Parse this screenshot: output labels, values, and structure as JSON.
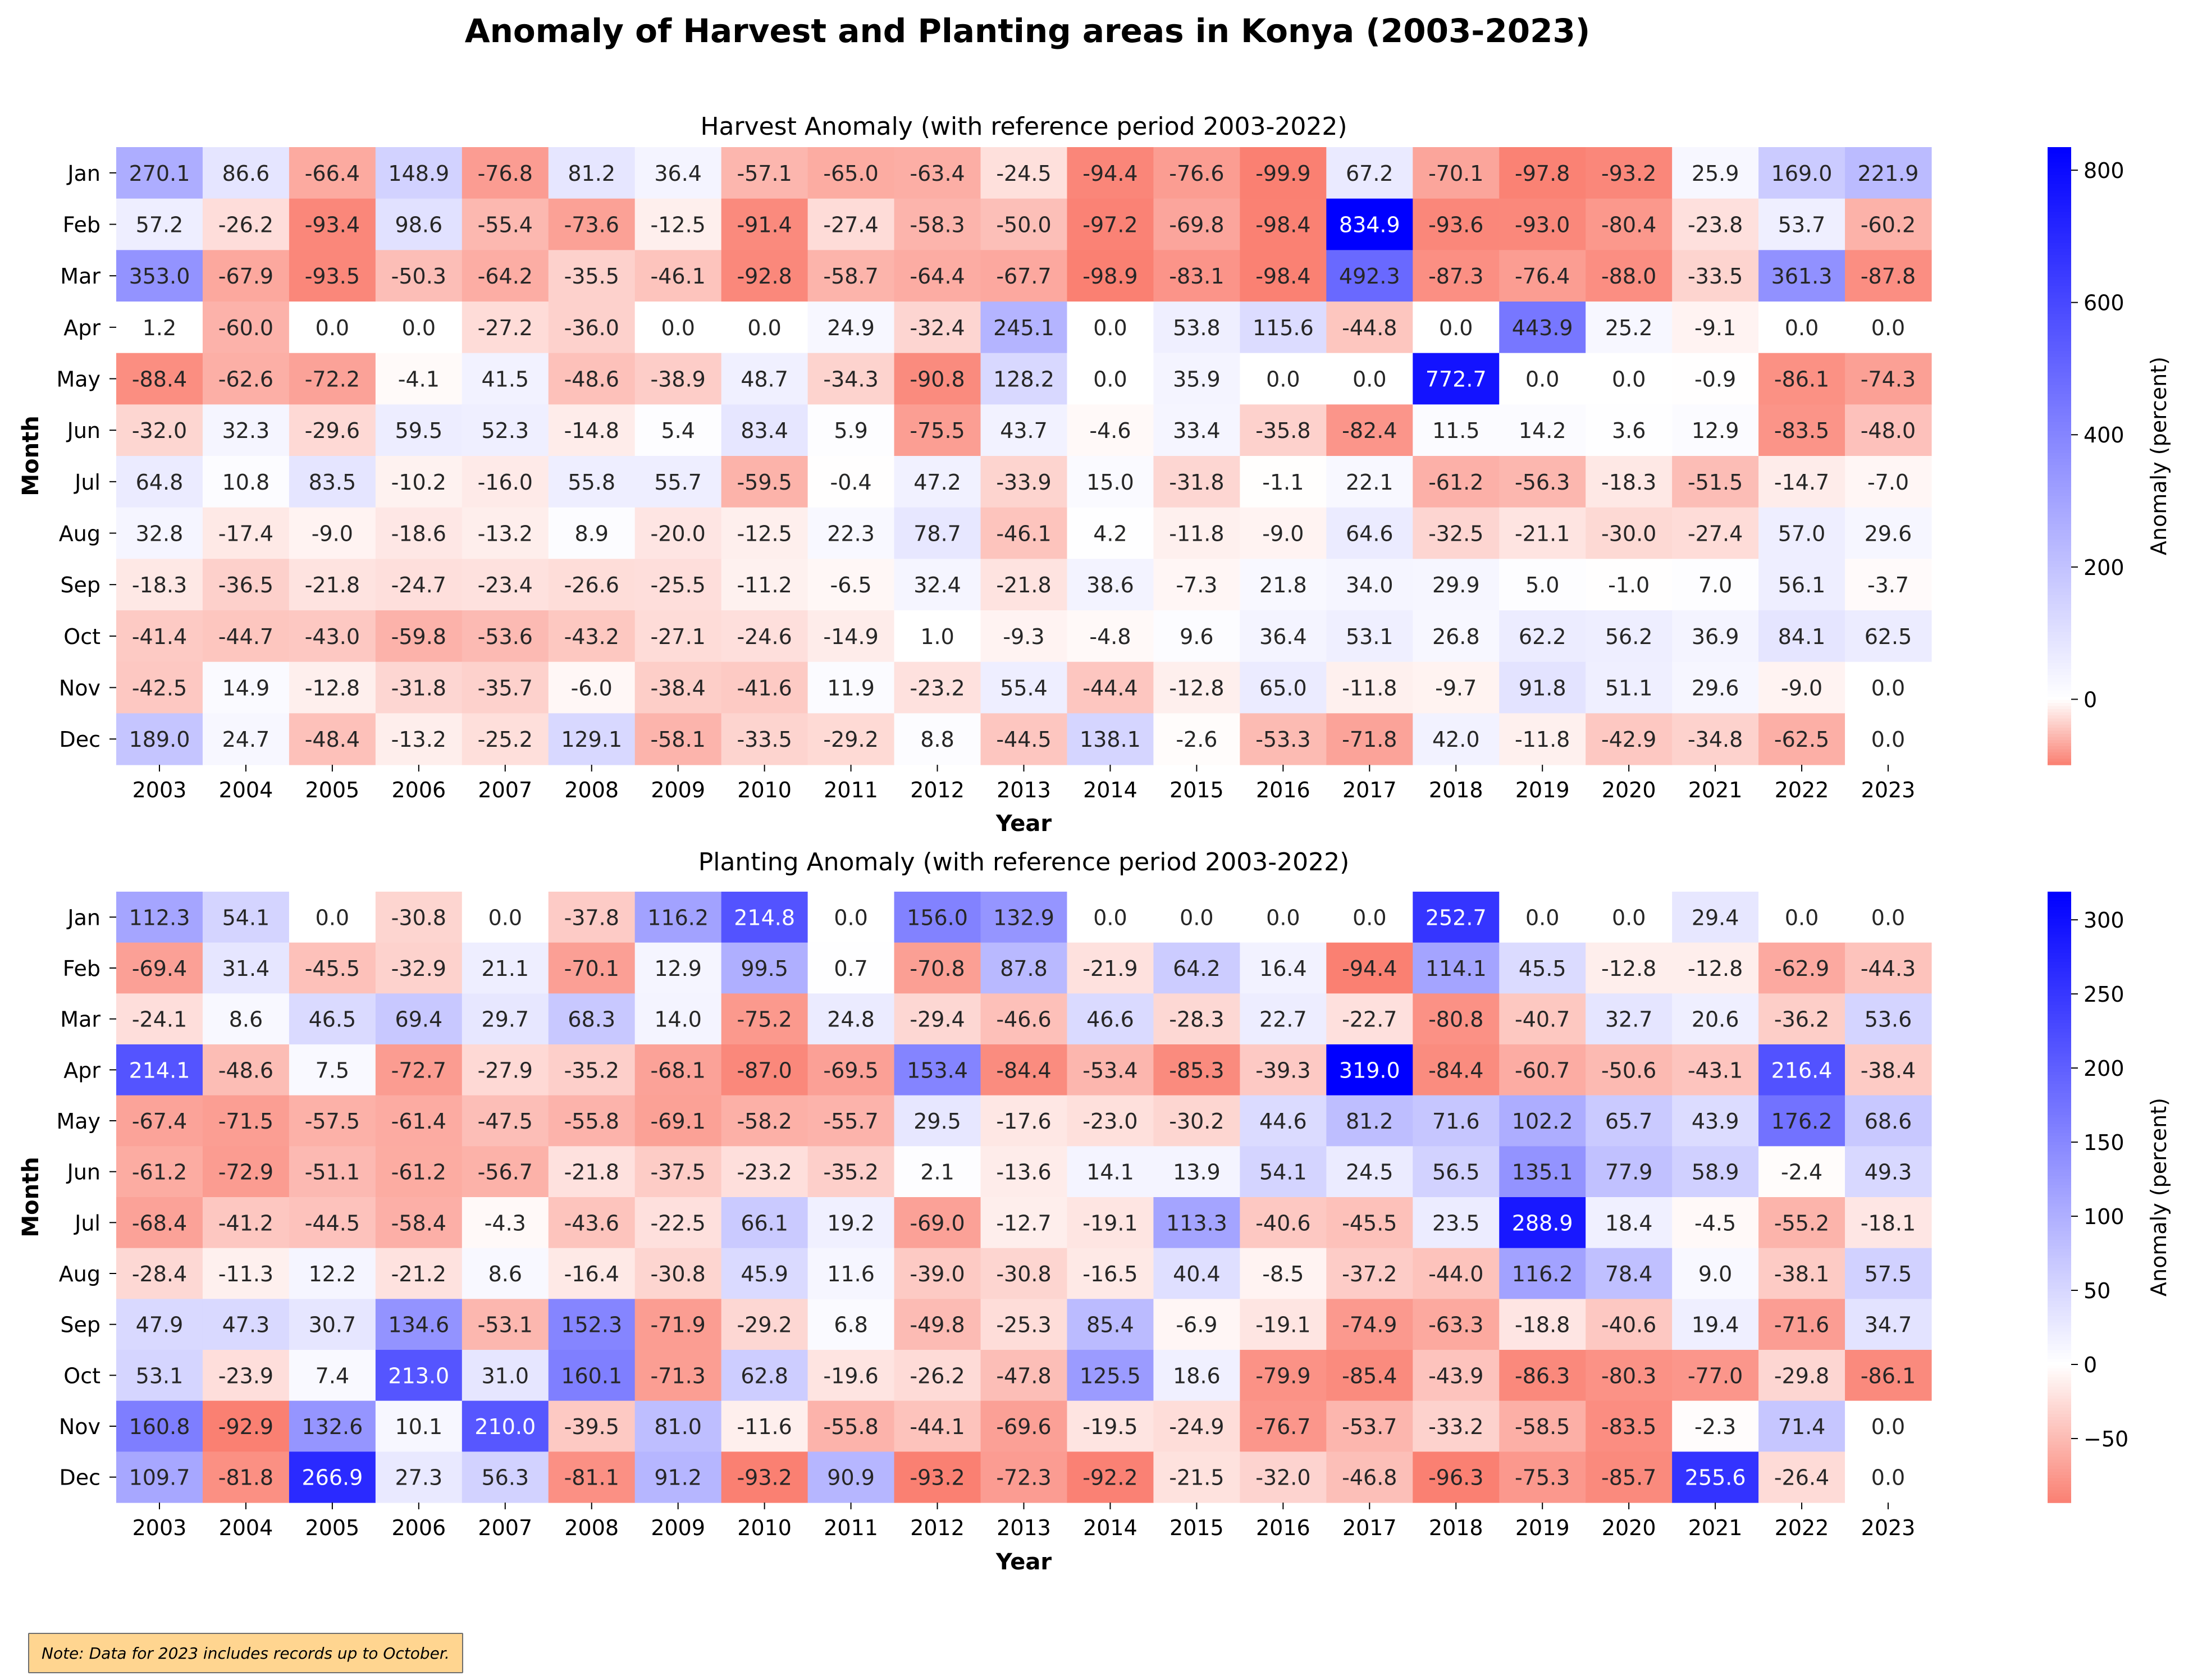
{
  "title": "Anomaly of Harvest and Planting areas in Konya (2003-2023)",
  "note": "Note: Data for 2023 includes records up to October.",
  "colors": {
    "low": "#fa8072",
    "mid": "#ffffff",
    "high": "#0000ff"
  },
  "chart_data": [
    {
      "type": "heatmap",
      "title": "Harvest Anomaly (with reference period 2003-2022)",
      "xlabel": "Year",
      "ylabel": "Month",
      "colorbar_label": "Anomaly (percent)",
      "colorbar_ticks": [
        0,
        200,
        400,
        600,
        800
      ],
      "vmin": -99,
      "vmax": 834.9,
      "x": [
        "2003",
        "2004",
        "2005",
        "2006",
        "2007",
        "2008",
        "2009",
        "2010",
        "2011",
        "2012",
        "2013",
        "2014",
        "2015",
        "2016",
        "2017",
        "2018",
        "2019",
        "2020",
        "2021",
        "2022",
        "2023"
      ],
      "y": [
        "Jan",
        "Feb",
        "Mar",
        "Apr",
        "May",
        "Jun",
        "Jul",
        "Aug",
        "Sep",
        "Oct",
        "Nov",
        "Dec"
      ],
      "values": [
        [
          270.1,
          86.6,
          -66.4,
          148.9,
          -76.8,
          81.2,
          36.4,
          -57.1,
          -65.0,
          -63.4,
          -24.5,
          -94.4,
          -76.6,
          -99.9,
          67.2,
          -70.1,
          -97.8,
          -93.2,
          25.9,
          169.0,
          221.9
        ],
        [
          57.2,
          -26.2,
          -93.4,
          98.6,
          -55.4,
          -73.6,
          -12.5,
          -91.4,
          -27.4,
          -58.3,
          -50.0,
          -97.2,
          -69.8,
          -98.4,
          834.9,
          -93.6,
          -93.0,
          -80.4,
          -23.8,
          53.7,
          -60.2
        ],
        [
          353.0,
          -67.9,
          -93.5,
          -50.3,
          -64.2,
          -35.5,
          -46.1,
          -92.8,
          -58.7,
          -64.4,
          -67.7,
          -98.9,
          -83.1,
          -98.4,
          492.3,
          -87.3,
          -76.4,
          -88.0,
          -33.5,
          361.3,
          -87.8
        ],
        [
          1.2,
          -60.0,
          0.0,
          0.0,
          -27.2,
          -36.0,
          0.0,
          0.0,
          24.9,
          -32.4,
          245.1,
          0.0,
          53.8,
          115.6,
          -44.8,
          0.0,
          443.9,
          25.2,
          -9.1,
          0.0,
          0.0
        ],
        [
          -88.4,
          -62.6,
          -72.2,
          -4.1,
          41.5,
          -48.6,
          -38.9,
          48.7,
          -34.3,
          -90.8,
          128.2,
          0.0,
          35.9,
          0.0,
          0.0,
          772.7,
          0.0,
          0.0,
          -0.9,
          -86.1,
          -74.3
        ],
        [
          -32.0,
          32.3,
          -29.6,
          59.5,
          52.3,
          -14.8,
          5.4,
          83.4,
          5.9,
          -75.5,
          43.7,
          -4.6,
          33.4,
          -35.8,
          -82.4,
          11.5,
          14.2,
          3.6,
          12.9,
          -83.5,
          -48.0
        ],
        [
          64.8,
          10.8,
          83.5,
          -10.2,
          -16.0,
          55.8,
          55.7,
          -59.5,
          -0.4,
          47.2,
          -33.9,
          15.0,
          -31.8,
          -1.1,
          22.1,
          -61.2,
          -56.3,
          -18.3,
          -51.5,
          -14.7,
          -7.0
        ],
        [
          32.8,
          -17.4,
          -9.0,
          -18.6,
          -13.2,
          8.9,
          -20.0,
          -12.5,
          22.3,
          78.7,
          -46.1,
          4.2,
          -11.8,
          -9.0,
          64.6,
          -32.5,
          -21.1,
          -30.0,
          -27.4,
          57.0,
          29.6
        ],
        [
          -18.3,
          -36.5,
          -21.8,
          -24.7,
          -23.4,
          -26.6,
          -25.5,
          -11.2,
          -6.5,
          32.4,
          -21.8,
          38.6,
          -7.3,
          21.8,
          34.0,
          29.9,
          5.0,
          -1.0,
          7.0,
          56.1,
          -3.7
        ],
        [
          -41.4,
          -44.7,
          -43.0,
          -59.8,
          -53.6,
          -43.2,
          -27.1,
          -24.6,
          -14.9,
          1.0,
          -9.3,
          -4.8,
          9.6,
          36.4,
          53.1,
          26.8,
          62.2,
          56.2,
          36.9,
          84.1,
          62.5
        ],
        [
          -42.5,
          14.9,
          -12.8,
          -31.8,
          -35.7,
          -6.0,
          -38.4,
          -41.6,
          11.9,
          -23.2,
          55.4,
          -44.4,
          -12.8,
          65.0,
          -11.8,
          -9.7,
          91.8,
          51.1,
          29.6,
          -9.0,
          0.0
        ],
        [
          189.0,
          24.7,
          -48.4,
          -13.2,
          -25.2,
          129.1,
          -58.1,
          -33.5,
          -29.2,
          8.8,
          -44.5,
          138.1,
          -2.6,
          -53.3,
          -71.8,
          42.0,
          -11.8,
          -42.9,
          -34.8,
          -62.5,
          0.0
        ]
      ]
    },
    {
      "type": "heatmap",
      "title": "Planting Anomaly (with reference period 2003-2022)",
      "xlabel": "Year",
      "ylabel": "Month",
      "colorbar_label": "Anomaly (percent)",
      "colorbar_ticks": [
        -50,
        0,
        50,
        100,
        150,
        200,
        250,
        300
      ],
      "vmin": -93.2,
      "vmax": 319.0,
      "x": [
        "2003",
        "2004",
        "2005",
        "2006",
        "2007",
        "2008",
        "2009",
        "2010",
        "2011",
        "2012",
        "2013",
        "2014",
        "2015",
        "2016",
        "2017",
        "2018",
        "2019",
        "2020",
        "2021",
        "2022",
        "2023"
      ],
      "y": [
        "Jan",
        "Feb",
        "Mar",
        "Apr",
        "May",
        "Jun",
        "Jul",
        "Aug",
        "Sep",
        "Oct",
        "Nov",
        "Dec"
      ],
      "values": [
        [
          112.3,
          54.1,
          0.0,
          -30.8,
          0.0,
          -37.8,
          116.2,
          214.8,
          0.0,
          156.0,
          132.9,
          0.0,
          0.0,
          0.0,
          0.0,
          252.7,
          0.0,
          0.0,
          29.4,
          0.0,
          0.0
        ],
        [
          -69.4,
          31.4,
          -45.5,
          -32.9,
          21.1,
          -70.1,
          12.9,
          99.5,
          0.7,
          -70.8,
          87.8,
          -21.9,
          64.2,
          16.4,
          -94.4,
          114.1,
          45.5,
          -12.8,
          -12.8,
          -62.9,
          -44.3
        ],
        [
          -24.1,
          8.6,
          46.5,
          69.4,
          29.7,
          68.3,
          14.0,
          -75.2,
          24.8,
          -29.4,
          -46.6,
          46.6,
          -28.3,
          22.7,
          -22.7,
          -80.8,
          -40.7,
          32.7,
          20.6,
          -36.2,
          53.6
        ],
        [
          214.1,
          -48.6,
          7.5,
          -72.7,
          -27.9,
          -35.2,
          -68.1,
          -87.0,
          -69.5,
          153.4,
          -84.4,
          -53.4,
          -85.3,
          -39.3,
          319.0,
          -84.4,
          -60.7,
          -50.6,
          -43.1,
          216.4,
          -38.4
        ],
        [
          -67.4,
          -71.5,
          -57.5,
          -61.4,
          -47.5,
          -55.8,
          -69.1,
          -58.2,
          -55.7,
          29.5,
          -17.6,
          -23.0,
          -30.2,
          44.6,
          81.2,
          71.6,
          102.2,
          65.7,
          43.9,
          176.2,
          68.6
        ],
        [
          -61.2,
          -72.9,
          -51.1,
          -61.2,
          -56.7,
          -21.8,
          -37.5,
          -23.2,
          -35.2,
          2.1,
          -13.6,
          14.1,
          13.9,
          54.1,
          24.5,
          56.5,
          135.1,
          77.9,
          58.9,
          -2.4,
          49.3
        ],
        [
          -68.4,
          -41.2,
          -44.5,
          -58.4,
          -4.3,
          -43.6,
          -22.5,
          66.1,
          19.2,
          -69.0,
          -12.7,
          -19.1,
          113.3,
          -40.6,
          -45.5,
          23.5,
          288.9,
          18.4,
          -4.5,
          -55.2,
          -18.1
        ],
        [
          -28.4,
          -11.3,
          12.2,
          -21.2,
          8.6,
          -16.4,
          -30.8,
          45.9,
          11.6,
          -39.0,
          -30.8,
          -16.5,
          40.4,
          -8.5,
          -37.2,
          -44.0,
          116.2,
          78.4,
          9.0,
          -38.1,
          57.5
        ],
        [
          47.9,
          47.3,
          30.7,
          134.6,
          -53.1,
          152.3,
          -71.9,
          -29.2,
          6.8,
          -49.8,
          -25.3,
          85.4,
          -6.9,
          -19.1,
          -74.9,
          -63.3,
          -18.8,
          -40.6,
          19.4,
          -71.6,
          34.7
        ],
        [
          53.1,
          -23.9,
          7.4,
          213.0,
          31.0,
          160.1,
          -71.3,
          62.8,
          -19.6,
          -26.2,
          -47.8,
          125.5,
          18.6,
          -79.9,
          -85.4,
          -43.9,
          -86.3,
          -80.3,
          -77.0,
          -29.8,
          -86.1
        ],
        [
          160.8,
          -92.9,
          132.6,
          10.1,
          210.0,
          -39.5,
          81.0,
          -11.6,
          -55.8,
          -44.1,
          -69.6,
          -19.5,
          -24.9,
          -76.7,
          -53.7,
          -33.2,
          -58.5,
          -83.5,
          -2.3,
          71.4,
          0.0
        ],
        [
          109.7,
          -81.8,
          266.9,
          27.3,
          56.3,
          -81.1,
          91.2,
          -93.2,
          90.9,
          -93.2,
          -72.3,
          -92.2,
          -21.5,
          -32.0,
          -46.8,
          -96.3,
          -75.3,
          -85.7,
          255.6,
          -26.4,
          0.0
        ]
      ]
    }
  ]
}
